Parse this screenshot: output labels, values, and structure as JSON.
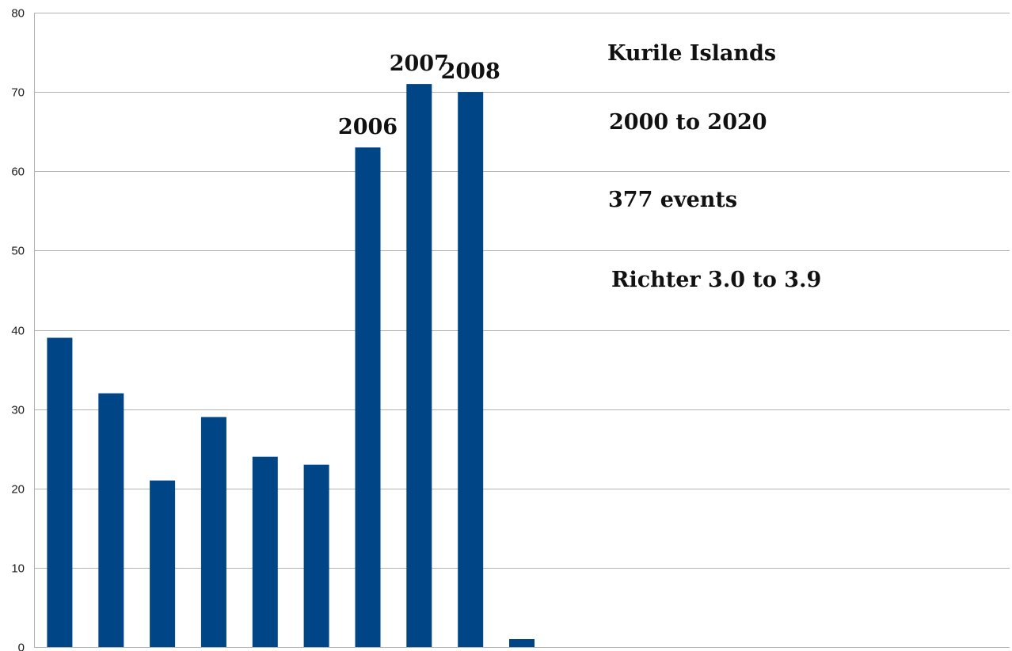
{
  "chart_data": {
    "type": "bar",
    "title": "",
    "xlabel": "",
    "ylabel": "",
    "ylim": [
      0,
      80
    ],
    "yticks": [
      "0",
      "10",
      "20",
      "30",
      "40",
      "50",
      "60",
      "70",
      "80"
    ],
    "grid": true,
    "categories": [
      "",
      "",
      "",
      "",
      "",
      "",
      "2006",
      "2007",
      "2008",
      "",
      "",
      "",
      "",
      "",
      "",
      "",
      "",
      "",
      ""
    ],
    "values": [
      39,
      32,
      21,
      29,
      24,
      23,
      63,
      71,
      70,
      1,
      0,
      0,
      0,
      0,
      0,
      0,
      0,
      0,
      0
    ],
    "annotations": [
      "Kurile Islands",
      "2000 to 2020",
      "377 events",
      "Richter 3.0 to 3.9"
    ],
    "bar_color": "#004586",
    "grid_color": "#b3b3b3"
  }
}
